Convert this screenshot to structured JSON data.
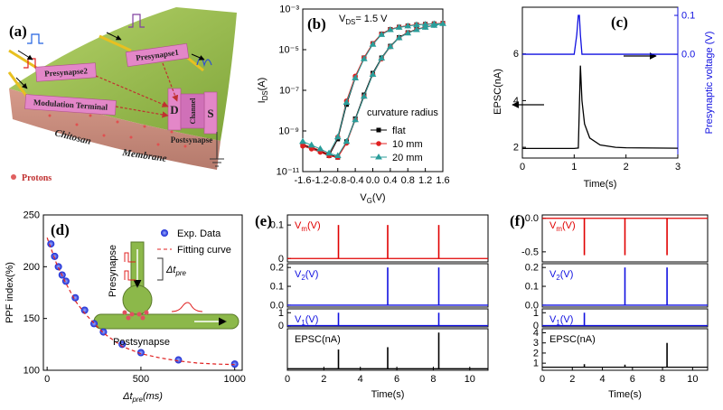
{
  "panel_a": {
    "label": "(a)",
    "texts": {
      "presynapse1": "Presynapse1",
      "presynapse2": "Presynapse2",
      "modulation": "Modulation Terminal",
      "postsynapse": "Postsynapse",
      "channel": "Channel",
      "drain": "D",
      "source": "S",
      "chitosan": "Chitosan",
      "membrane": "Membrane",
      "protons": "Protons"
    }
  },
  "chart_data": [
    {
      "type": "line",
      "panel_label": "(b)",
      "log_y": true,
      "legend": "lower right",
      "annotation": [
        "V",
        "DS",
        "= 1.5 V"
      ],
      "legend_title": "curvature radius",
      "xlabel": [
        "V",
        "G",
        "(V)"
      ],
      "ylabel": [
        "I",
        "DS",
        "(A)"
      ],
      "xlim": [
        -1.6,
        1.6
      ],
      "xticks": [
        -1.6,
        -1.2,
        -0.8,
        -0.4,
        {
          "value": 0,
          "label": "0.0"
        },
        0.4,
        0.8,
        1.2,
        1.6
      ],
      "ylim": [
        1e-11,
        0.001
      ],
      "yticks": [
        {
          "value": 1e-11,
          "label": "10⁻¹¹"
        },
        {
          "value": 1e-09,
          "label": "10⁻⁹"
        },
        {
          "value": 1e-07,
          "label": "10⁻⁷"
        },
        {
          "value": 1e-05,
          "label": "10⁻⁵"
        },
        {
          "value": 0.001,
          "label": "10⁻³"
        }
      ],
      "x": [
        -1.6,
        -1.4,
        -1.2,
        -1.0,
        -0.8,
        -0.6,
        -0.4,
        -0.2,
        0,
        0.2,
        0.4,
        0.6,
        0.8,
        1.0,
        1.2,
        1.4,
        1.6,
        1.4,
        1.2,
        1.0,
        0.8,
        0.6,
        0.4,
        0.2,
        0,
        -0.2,
        -0.4,
        -0.6,
        -0.8,
        -1.0,
        -1.2,
        -1.4,
        -1.6
      ],
      "series": [
        {
          "name": "flat",
          "color": "#000000",
          "marker": "square",
          "values": [
            2e-10,
            1.5e-10,
            1e-10,
            7e-11,
            5e-11,
            3e-10,
            4e-09,
            6e-08,
            7e-07,
            4e-06,
            1.5e-05,
            4e-05,
            7e-05,
            0.0001,
            0.00013,
            0.00016,
            0.0002,
            0.00019,
            0.00018,
            0.00017,
            0.00015,
            0.00013,
            0.0001,
            6e-05,
            2e-05,
            4e-06,
            4e-07,
            2e-08,
            4e-10,
            6e-11,
            1e-10,
            1.5e-10,
            2e-10
          ]
        },
        {
          "name": "10 mm",
          "color": "#e02020",
          "marker": "circle",
          "values": [
            1.8e-10,
            1.3e-10,
            9e-11,
            6e-11,
            5e-11,
            2.5e-10,
            3.5e-09,
            5e-08,
            6e-07,
            3.5e-06,
            1.4e-05,
            3.8e-05,
            6.8e-05,
            9.8e-05,
            0.00013,
            0.00016,
            0.0002,
            0.00019,
            0.00018,
            0.00017,
            0.00015,
            0.00013,
            0.0001,
            6e-05,
            2e-05,
            4e-06,
            5e-07,
            3e-08,
            5e-10,
            7e-11,
            1.1e-10,
            1.6e-10,
            2.2e-10
          ]
        },
        {
          "name": "20 mm",
          "color": "#2a9d9a",
          "marker": "triangle",
          "values": [
            3e-10,
            2e-10,
            1.3e-10,
            8e-11,
            6e-11,
            3e-10,
            3.5e-09,
            5e-08,
            6e-07,
            3.8e-06,
            1.4e-05,
            3.8e-05,
            6.5e-05,
            9.5e-05,
            0.000125,
            0.000155,
            0.00019,
            0.000185,
            0.000175,
            0.000165,
            0.000145,
            0.000125,
            9.5e-05,
            5.5e-05,
            1.8e-05,
            3.5e-06,
            4e-07,
            2.5e-08,
            5e-10,
            8e-11,
            1.3e-10,
            2e-10,
            3e-10
          ]
        }
      ]
    },
    {
      "type": "dual-line",
      "panel_label": "(c)",
      "xlabel": "Time(s)",
      "ylabel": "EPSC(nA)",
      "y2label": "Presynaptic voltage (V)",
      "y2color": "#1010e0",
      "xlim": [
        0,
        3
      ],
      "xticks": [
        0,
        1,
        2,
        3
      ],
      "ylim": [
        1.54,
        8.0
      ],
      "yticks": [
        2,
        4,
        6
      ],
      "y2lim": [
        -0.267,
        0.121
      ],
      "y2ticks": [
        {
          "value": 0,
          "label": "0.0"
        },
        0.1
      ],
      "series": [
        {
          "color": "#000000",
          "axis": "y",
          "x": [
            0,
            0.5,
            1.0,
            1.08,
            1.12,
            1.15,
            1.2,
            1.3,
            1.5,
            1.8,
            2.0,
            2.5,
            3.0
          ],
          "values": [
            1.95,
            1.95,
            1.95,
            1.97,
            5.5,
            4.0,
            3.0,
            2.4,
            2.1,
            2.0,
            1.98,
            1.97,
            1.96
          ]
        },
        {
          "color": "#1010e0",
          "axis": "y2",
          "x": [
            0,
            1.0,
            1.05,
            1.08,
            1.1,
            1.12,
            1.15,
            3.0
          ],
          "values": [
            0,
            0,
            0.05,
            0.1,
            0.1,
            0.05,
            0,
            0
          ]
        }
      ]
    },
    {
      "type": "scatter",
      "panel_label": "(d)",
      "xlabel": [
        "Δt",
        "pre",
        "(ms)"
      ],
      "ylabel": "PPF index(%)",
      "inset": {
        "presynapse": "Presynapse",
        "postsynapse": "Postsynapse",
        "interval": [
          "Δt",
          "pre"
        ]
      },
      "xlim": [
        -20,
        1040
      ],
      "xticks": [
        0,
        500,
        1000
      ],
      "ylim": [
        100,
        250
      ],
      "yticks": [
        100,
        150,
        200,
        250
      ],
      "series": [
        {
          "name": "Exp. Data",
          "color": "#2030e0",
          "style": "points",
          "x": [
            20,
            40,
            60,
            80,
            100,
            150,
            200,
            250,
            300,
            400,
            500,
            700,
            1000
          ],
          "values": [
            222,
            210,
            200,
            192,
            186,
            170,
            158,
            145,
            137,
            125,
            117,
            110,
            106
          ]
        },
        {
          "name": "Fitting curve",
          "color": "#e02020",
          "style": "dashed",
          "x": [
            0,
            50,
            100,
            150,
            200,
            300,
            400,
            500,
            600,
            700,
            800,
            900,
            1000
          ],
          "values": [
            228,
            203,
            184,
            167,
            155,
            136,
            123,
            116,
            112,
            109,
            107,
            106,
            105.5
          ]
        }
      ]
    },
    {
      "type": "spike-stack",
      "panel_label": "(e)",
      "xlabel": "Time(s)",
      "xlim": [
        0,
        11
      ],
      "xticks": [
        0,
        2,
        4,
        6,
        8,
        10
      ],
      "rows": [
        {
          "label": [
            "V",
            "m",
            "(V)"
          ],
          "color": "#e00000",
          "ylim": [
            -0.01,
            0.13
          ],
          "yticks": [
            0,
            0.1
          ],
          "baseline": 0,
          "x": [
            2.8,
            5.5,
            8.3
          ],
          "values": [
            0.1,
            0.1,
            0.1
          ]
        },
        {
          "label": [
            "V",
            "2",
            "(V)"
          ],
          "color": "#1010e0",
          "ylim": [
            -0.01,
            0.22
          ],
          "yticks": [
            {
              "value": 0,
              "label": "0.0"
            },
            0.1,
            0.2
          ],
          "baseline": 0,
          "x": [
            5.5,
            8.3
          ],
          "values": [
            0.2,
            0.2
          ]
        },
        {
          "label": [
            "V",
            "1",
            "(V)"
          ],
          "color": "#1010e0",
          "ylim": [
            -0.1,
            1.3
          ],
          "yticks": [
            0,
            1
          ],
          "baseline": 0,
          "x": [
            2.8,
            8.3
          ],
          "values": [
            1,
            1
          ]
        },
        {
          "label": "EPSC(nA)",
          "color": "#000000",
          "ylim": [
            -0.2,
            5.2
          ],
          "baseline": 0,
          "x": [
            2.8,
            5.5,
            8.3
          ],
          "values": [
            2.5,
            2.8,
            4.7
          ]
        }
      ]
    },
    {
      "type": "spike-stack",
      "panel_label": "(f)",
      "xlabel": "Time(s)",
      "xlim": [
        0,
        11
      ],
      "xticks": [
        0,
        2,
        4,
        6,
        8,
        10
      ],
      "rows": [
        {
          "label": [
            "V",
            "m",
            "(V)"
          ],
          "color": "#e00000",
          "ylim": [
            -0.65,
            0.05
          ],
          "yticks": [
            {
              "value": 0,
              "label": "0.0"
            },
            -0.5
          ],
          "baseline": 0,
          "x": [
            2.8,
            5.5,
            8.3
          ],
          "values": [
            -0.55,
            -0.55,
            -0.55
          ]
        },
        {
          "label": [
            "V",
            "2",
            "(V)"
          ],
          "color": "#1010e0",
          "ylim": [
            -0.01,
            0.22
          ],
          "yticks": [
            {
              "value": 0,
              "label": "0.0"
            },
            0.1,
            0.2
          ],
          "baseline": 0,
          "x": [
            5.5,
            8.3
          ],
          "values": [
            0.2,
            0.2
          ]
        },
        {
          "label": [
            "V",
            "1",
            "(V)"
          ],
          "color": "#1010e0",
          "ylim": [
            -0.1,
            1.3
          ],
          "yticks": [
            0,
            1
          ],
          "baseline": 0,
          "x": [
            2.8
          ],
          "values": [
            1
          ]
        },
        {
          "label": "EPSC(nA)",
          "color": "#000000",
          "ylim": [
            0.3,
            4.4
          ],
          "yticks": [
            1,
            2,
            3,
            4
          ],
          "baseline": 0.6,
          "x": [
            2.8,
            5.5,
            8.3
          ],
          "values": [
            0.9,
            0.85,
            3.0
          ]
        }
      ]
    }
  ]
}
